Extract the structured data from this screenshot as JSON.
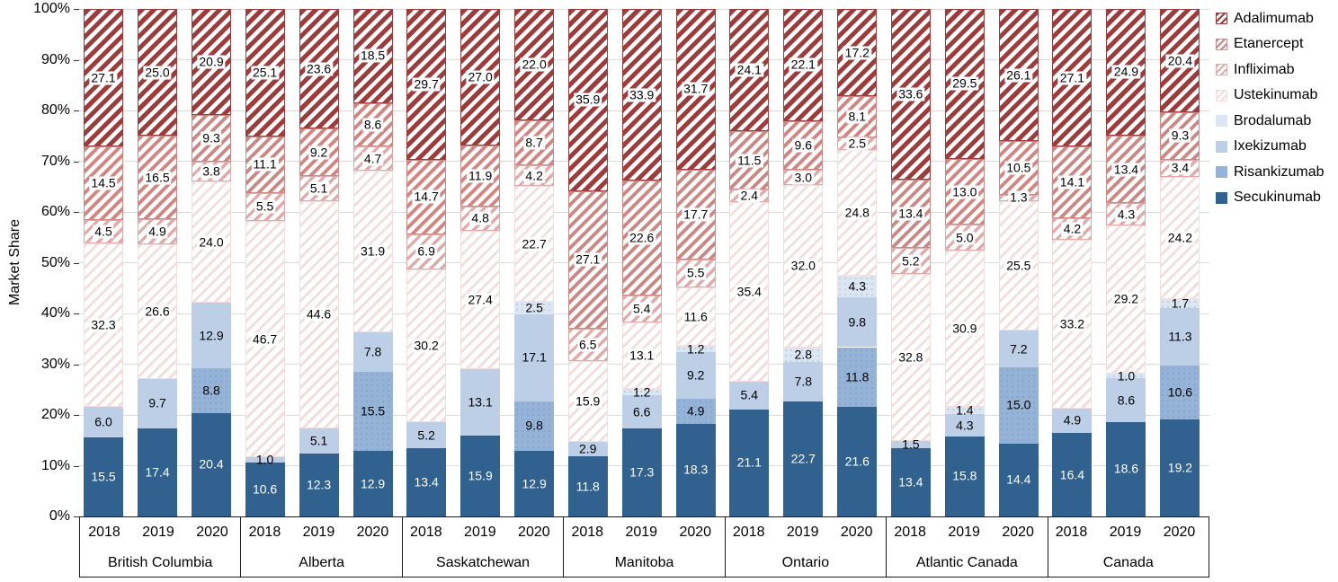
{
  "chart_data": {
    "type": "bar",
    "subtype": "stacked-100-percent",
    "title": "",
    "xlabel": "",
    "ylabel": "Market Share",
    "ylim": [
      0,
      100
    ],
    "yticks": [
      "0%",
      "10%",
      "20%",
      "30%",
      "40%",
      "50%",
      "60%",
      "70%",
      "80%",
      "90%",
      "100%"
    ],
    "grid": "horizontal",
    "legend_position": "right",
    "legend_top_to_bottom": [
      "Adalimumab",
      "Etanercept",
      "Infliximab",
      "Ustekinumab",
      "Brodalumab",
      "Ixekizumab",
      "Risankizumab",
      "Secukinumab"
    ],
    "stack_order_bottom_to_top": [
      "Secukinumab",
      "Risankizumab",
      "Ixekizumab",
      "Brodalumab",
      "Ustekinumab",
      "Infliximab",
      "Etanercept",
      "Adalimumab"
    ],
    "series_colors": {
      "Adalimumab": "#9e3b3b",
      "Etanercept": "#cf8784",
      "Infliximab": "#dfaaa8",
      "Ustekinumab": "#f2dedd",
      "Brodalumab": "#dce6f2",
      "Ixekizumab": "#bdcfe7",
      "Risankizumab": "#95b3d7",
      "Secukinumab": "#31618f"
    },
    "series_fill_styles": {
      "Adalimumab": "hatch",
      "Etanercept": "hatch",
      "Infliximab": "hatch",
      "Ustekinumab": "hatch",
      "Brodalumab": "solid",
      "Ixekizumab": "solid",
      "Risankizumab": "solid",
      "Secukinumab": "solid"
    },
    "years": [
      "2018",
      "2019",
      "2020"
    ],
    "groups": [
      {
        "label": "British Columbia",
        "bars": [
          {
            "year": "2018",
            "values": {
              "Secukinumab": 15.5,
              "Ixekizumab": 6.0,
              "Ustekinumab": 32.3,
              "Infliximab": 4.5,
              "Etanercept": 14.5,
              "Adalimumab": 27.1
            }
          },
          {
            "year": "2019",
            "values": {
              "Secukinumab": 17.4,
              "Ixekizumab": 9.7,
              "Ustekinumab": 26.6,
              "Infliximab": 4.9,
              "Etanercept": 16.5,
              "Adalimumab": 25.0
            }
          },
          {
            "year": "2020",
            "values": {
              "Secukinumab": 20.4,
              "Risankizumab": 8.8,
              "Ixekizumab": 12.9,
              "Ustekinumab": 24.0,
              "Infliximab": 3.8,
              "Etanercept": 9.3,
              "Adalimumab": 20.9
            }
          }
        ]
      },
      {
        "label": "Alberta",
        "bars": [
          {
            "year": "2018",
            "values": {
              "Secukinumab": 10.6,
              "Ixekizumab": 1.0,
              "Ustekinumab": 46.7,
              "Infliximab": 5.5,
              "Etanercept": 11.1,
              "Adalimumab": 25.1
            }
          },
          {
            "year": "2019",
            "values": {
              "Secukinumab": 12.3,
              "Ixekizumab": 5.1,
              "Ustekinumab": 44.6,
              "Infliximab": 5.1,
              "Etanercept": 9.2,
              "Adalimumab": 23.6
            }
          },
          {
            "year": "2020",
            "values": {
              "Secukinumab": 12.9,
              "Risankizumab": 15.5,
              "Ixekizumab": 7.8,
              "Ustekinumab": 31.9,
              "Infliximab": 4.7,
              "Etanercept": 8.6,
              "Adalimumab": 18.5
            }
          }
        ]
      },
      {
        "label": "Saskatchewan",
        "bars": [
          {
            "year": "2018",
            "values": {
              "Secukinumab": 13.4,
              "Ixekizumab": 5.2,
              "Ustekinumab": 30.2,
              "Infliximab": 6.9,
              "Etanercept": 14.7,
              "Adalimumab": 29.7
            }
          },
          {
            "year": "2019",
            "values": {
              "Secukinumab": 15.9,
              "Ixekizumab": 13.1,
              "Ustekinumab": 27.4,
              "Infliximab": 4.8,
              "Etanercept": 11.9,
              "Adalimumab": 27.0
            }
          },
          {
            "year": "2020",
            "values": {
              "Secukinumab": 12.9,
              "Risankizumab": 9.8,
              "Ixekizumab": 17.1,
              "Brodalumab": 2.5,
              "Ustekinumab": 22.7,
              "Infliximab": 4.2,
              "Etanercept": 8.7,
              "Adalimumab": 22.0
            }
          }
        ]
      },
      {
        "label": "Manitoba",
        "bars": [
          {
            "year": "2018",
            "values": {
              "Secukinumab": 11.8,
              "Ixekizumab": 2.9,
              "Ustekinumab": 15.9,
              "Infliximab": 6.5,
              "Etanercept": 27.1,
              "Adalimumab": 35.9
            }
          },
          {
            "year": "2019",
            "values": {
              "Secukinumab": 17.3,
              "Ixekizumab": 6.6,
              "Brodalumab": 1.2,
              "Ustekinumab": 13.1,
              "Infliximab": 5.4,
              "Etanercept": 22.6,
              "Adalimumab": 33.9
            }
          },
          {
            "year": "2020",
            "values": {
              "Secukinumab": 18.3,
              "Risankizumab": 4.9,
              "Ixekizumab": 9.2,
              "Brodalumab": 1.2,
              "Ustekinumab": 11.6,
              "Infliximab": 5.5,
              "Etanercept": 17.7,
              "Adalimumab": 31.7
            }
          }
        ]
      },
      {
        "label": "Ontario",
        "bars": [
          {
            "year": "2018",
            "values": {
              "Secukinumab": 21.1,
              "Ixekizumab": 5.4,
              "Ustekinumab": 35.4,
              "Infliximab": 2.4,
              "Etanercept": 11.5,
              "Adalimumab": 24.1
            }
          },
          {
            "year": "2019",
            "values": {
              "Secukinumab": 22.7,
              "Ixekizumab": 7.8,
              "Brodalumab": 2.8,
              "Ustekinumab": 32.0,
              "Infliximab": 3.0,
              "Etanercept": 9.6,
              "Adalimumab": 22.1
            }
          },
          {
            "year": "2020",
            "values": {
              "Secukinumab": 21.6,
              "Risankizumab": 11.8,
              "Ixekizumab": 9.8,
              "Brodalumab": 4.3,
              "Ustekinumab": 24.8,
              "Infliximab": 2.5,
              "Etanercept": 8.1,
              "Adalimumab": 17.2
            }
          }
        ]
      },
      {
        "label": "Atlantic Canada",
        "bars": [
          {
            "year": "2018",
            "values": {
              "Secukinumab": 13.4,
              "Ixekizumab": 1.5,
              "Ustekinumab": 32.8,
              "Infliximab": 5.2,
              "Etanercept": 13.4,
              "Adalimumab": 33.6
            }
          },
          {
            "year": "2019",
            "values": {
              "Secukinumab": 15.8,
              "Ixekizumab": 4.3,
              "Brodalumab": 1.4,
              "Ustekinumab": 30.9,
              "Infliximab": 5.0,
              "Etanercept": 13.0,
              "Adalimumab": 29.5
            }
          },
          {
            "year": "2020",
            "values": {
              "Secukinumab": 14.4,
              "Risankizumab": 15.0,
              "Ixekizumab": 7.2,
              "Ustekinumab": 25.5,
              "Infliximab": 1.3,
              "Etanercept": 10.5,
              "Adalimumab": 26.1
            }
          }
        ]
      },
      {
        "label": "Canada",
        "bars": [
          {
            "year": "2018",
            "values": {
              "Secukinumab": 16.4,
              "Ixekizumab": 4.9,
              "Ustekinumab": 33.2,
              "Infliximab": 4.2,
              "Etanercept": 14.1,
              "Adalimumab": 27.1
            }
          },
          {
            "year": "2019",
            "values": {
              "Secukinumab": 18.6,
              "Ixekizumab": 8.6,
              "Brodalumab": 1.0,
              "Ustekinumab": 29.2,
              "Infliximab": 4.3,
              "Etanercept": 13.4,
              "Adalimumab": 24.9
            }
          },
          {
            "year": "2020",
            "values": {
              "Secukinumab": 19.2,
              "Risankizumab": 10.6,
              "Ixekizumab": 11.3,
              "Brodalumab": 1.7,
              "Ustekinumab": 24.2,
              "Infliximab": 3.4,
              "Etanercept": 9.3,
              "Adalimumab": 20.4
            }
          }
        ]
      }
    ]
  }
}
